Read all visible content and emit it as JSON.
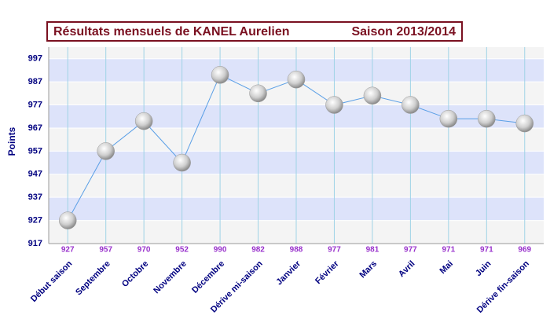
{
  "chart_data": {
    "type": "line",
    "title": "Résultats mensuels de  KANEL Aurelien",
    "subtitle": "Saison 2013/2014",
    "y_label": "Points",
    "categories": [
      "Début saison",
      "Septembre",
      "Octobre",
      "Novembre",
      "Décembre",
      "Dérive mi-saison",
      "Janvier",
      "Février",
      "Mars",
      "Avril",
      "Mai",
      "Juin",
      "Dérive fin-saison"
    ],
    "values": [
      927,
      957,
      970,
      952,
      990,
      982,
      988,
      977,
      981,
      977,
      971,
      971,
      969
    ],
    "color": "#5a9fe6",
    "ylim": [
      917,
      1002
    ],
    "yticks": [
      917,
      927,
      937,
      947,
      957,
      967,
      977,
      987,
      997
    ],
    "grid": true
  }
}
